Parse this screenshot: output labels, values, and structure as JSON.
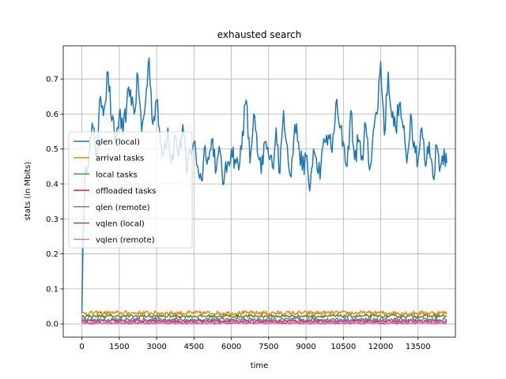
{
  "chart_data": {
    "type": "line",
    "title": "exhausted search",
    "xlabel": "time",
    "ylabel": "stats (in Mbits)",
    "xlim": [
      -750,
      15000
    ],
    "ylim": [
      -0.038,
      0.795
    ],
    "xticks": [
      0,
      1500,
      3000,
      4500,
      6000,
      7500,
      9000,
      10500,
      12000,
      13500
    ],
    "xtick_labels": [
      "0",
      "1500",
      "3000",
      "4500",
      "6000",
      "7500",
      "9000",
      "10500",
      "12000",
      "13500"
    ],
    "yticks": [
      0.0,
      0.1,
      0.2,
      0.3,
      0.4,
      0.5,
      0.6,
      0.7
    ],
    "ytick_labels": [
      "0.0",
      "0.1",
      "0.2",
      "0.3",
      "0.4",
      "0.5",
      "0.6",
      "0.7"
    ],
    "grid": true,
    "legend_position": "center-left",
    "series": [
      {
        "name": "qlen (local)",
        "color": "#1f77b4",
        "x": [
          0,
          50,
          150,
          300,
          450,
          600,
          750,
          900,
          1050,
          1200,
          1350,
          1500,
          1650,
          1800,
          1950,
          2100,
          2250,
          2400,
          2550,
          2700,
          2850,
          3000,
          3150,
          3300,
          3450,
          3600,
          3750,
          3900,
          4050,
          4200,
          4350,
          4500,
          4650,
          4800,
          4950,
          5100,
          5250,
          5400,
          5550,
          5700,
          5850,
          6000,
          6150,
          6300,
          6450,
          6600,
          6750,
          6900,
          7050,
          7200,
          7350,
          7500,
          7650,
          7800,
          7950,
          8100,
          8250,
          8400,
          8550,
          8700,
          8850,
          9000,
          9150,
          9300,
          9450,
          9600,
          9750,
          9900,
          10050,
          10200,
          10350,
          10500,
          10650,
          10800,
          10950,
          11100,
          11250,
          11400,
          11550,
          11700,
          11850,
          12000,
          12150,
          12300,
          12450,
          12600,
          12750,
          12900,
          13050,
          13200,
          13350,
          13500,
          13650,
          13800,
          13950,
          14100,
          14250,
          14400,
          14550,
          14650
        ],
        "y": [
          0.03,
          0.26,
          0.45,
          0.5,
          0.56,
          0.48,
          0.65,
          0.62,
          0.72,
          0.58,
          0.52,
          0.6,
          0.54,
          0.63,
          0.67,
          0.6,
          0.71,
          0.55,
          0.63,
          0.76,
          0.57,
          0.64,
          0.52,
          0.5,
          0.56,
          0.46,
          0.54,
          0.48,
          0.57,
          0.43,
          0.5,
          0.52,
          0.45,
          0.41,
          0.51,
          0.47,
          0.53,
          0.44,
          0.49,
          0.4,
          0.46,
          0.5,
          0.47,
          0.44,
          0.55,
          0.64,
          0.46,
          0.6,
          0.49,
          0.43,
          0.52,
          0.48,
          0.45,
          0.56,
          0.43,
          0.61,
          0.51,
          0.42,
          0.57,
          0.52,
          0.44,
          0.48,
          0.38,
          0.5,
          0.44,
          0.45,
          0.52,
          0.54,
          0.49,
          0.63,
          0.56,
          0.52,
          0.45,
          0.61,
          0.47,
          0.52,
          0.48,
          0.57,
          0.44,
          0.55,
          0.6,
          0.75,
          0.54,
          0.72,
          0.59,
          0.56,
          0.63,
          0.56,
          0.46,
          0.6,
          0.52,
          0.47,
          0.56,
          0.45,
          0.52,
          0.42,
          0.51,
          0.45,
          0.5,
          0.46
        ]
      },
      {
        "name": "arrival tasks",
        "color": "#ff7f0e",
        "x": [
          0,
          14650
        ],
        "y": [
          0.031,
          0.031
        ],
        "noise": 0.006
      },
      {
        "name": "local tasks",
        "color": "#2ca02c",
        "x": [
          0,
          14650
        ],
        "y": [
          0.022,
          0.022
        ],
        "noise": 0.004
      },
      {
        "name": "offloaded tasks",
        "color": "#d62728",
        "x": [
          0,
          14650
        ],
        "y": [
          0.008,
          0.008
        ],
        "noise": 0.004
      },
      {
        "name": "qlen (remote)",
        "color": "#9467bd",
        "x": [
          0,
          14650
        ],
        "y": [
          0.012,
          0.012
        ],
        "noise": 0.006
      },
      {
        "name": "vqlen (local)",
        "color": "#8c564b",
        "x": [
          0,
          14650
        ],
        "y": [
          0.002,
          0.002
        ],
        "noise": 0.002
      },
      {
        "name": "vqlen (remote)",
        "color": "#e377c2",
        "x": [
          0,
          14650
        ],
        "y": [
          0.003,
          0.003
        ],
        "noise": 0.002
      }
    ]
  }
}
